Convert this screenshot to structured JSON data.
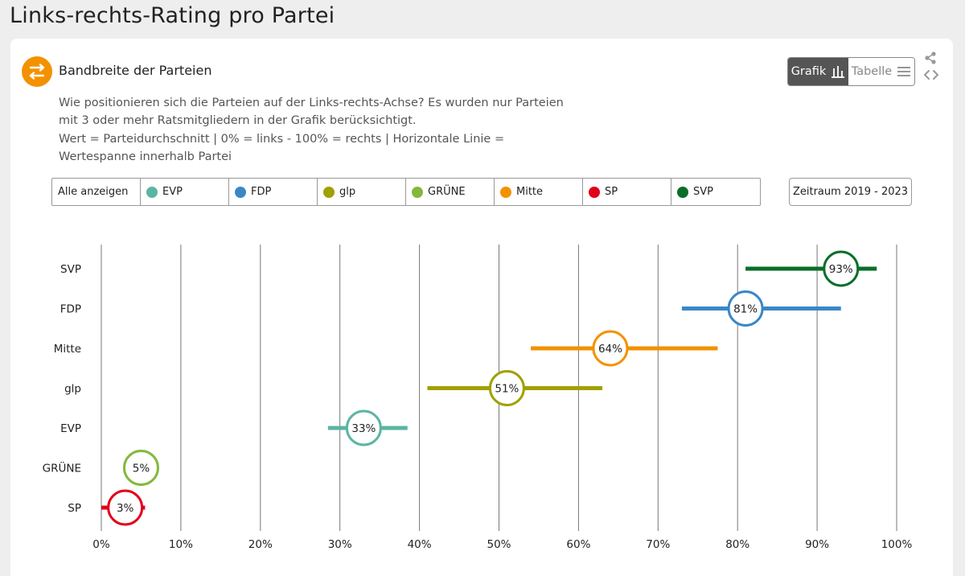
{
  "page": {
    "title": "Links-rechts-Rating pro Partei"
  },
  "card": {
    "heading": "Bandbreite der Parteien",
    "description_lines": [
      "Wie positionieren sich die Parteien auf der Links-rechts-Achse? Es wurden nur Parteien",
      "mit 3 oder mehr Ratsmitgliedern in der Grafik berücksichtigt.",
      "Wert = Parteidurchschnitt | 0% = links - 100% = rechts | Horizontale Linie =",
      "Wertespanne innerhalb Partei"
    ]
  },
  "toggle": {
    "grafik_label": "Grafik",
    "tabelle_label": "Tabelle"
  },
  "legend": {
    "all_label": "Alle anzeigen",
    "items": [
      {
        "label": "EVP",
        "color": "#5bb5a2"
      },
      {
        "label": "FDP",
        "color": "#3a87c6"
      },
      {
        "label": "glp",
        "color": "#a0a000"
      },
      {
        "label": "GRÜNE",
        "color": "#84b83c"
      },
      {
        "label": "Mitte",
        "color": "#f39200"
      },
      {
        "label": "SP",
        "color": "#e2001a"
      },
      {
        "label": "SVP",
        "color": "#0a6e2a"
      }
    ]
  },
  "period": {
    "label": "Zeitraum 2019 - 2023"
  },
  "chart_data": {
    "type": "range-dot",
    "title": "Bandbreite der Parteien",
    "xlabel": "",
    "ylabel": "",
    "xlim": [
      0,
      100
    ],
    "ticks": [
      "0%",
      "10%",
      "20%",
      "30%",
      "40%",
      "50%",
      "60%",
      "70%",
      "80%",
      "90%",
      "100%"
    ],
    "tick_values": [
      0,
      10,
      20,
      30,
      40,
      50,
      60,
      70,
      80,
      90,
      100
    ],
    "grid": true,
    "series": [
      {
        "name": "SVP",
        "value": 93,
        "label": "93%",
        "min": 81,
        "max": 97.5,
        "color": "#0a6e2a"
      },
      {
        "name": "FDP",
        "value": 81,
        "label": "81%",
        "min": 73,
        "max": 93,
        "color": "#3a87c6"
      },
      {
        "name": "Mitte",
        "value": 64,
        "label": "64%",
        "min": 54,
        "max": 77.5,
        "color": "#f39200"
      },
      {
        "name": "glp",
        "value": 51,
        "label": "51%",
        "min": 41,
        "max": 63,
        "color": "#a0a000"
      },
      {
        "name": "EVP",
        "value": 33,
        "label": "33%",
        "min": 28.5,
        "max": 38.5,
        "color": "#5bb5a2"
      },
      {
        "name": "GRÜNE",
        "value": 5,
        "label": "5%",
        "min": 5,
        "max": 5,
        "color": "#84b83c"
      },
      {
        "name": "SP",
        "value": 3,
        "label": "3%",
        "min": 0,
        "max": 5.5,
        "color": "#e2001a"
      }
    ]
  }
}
